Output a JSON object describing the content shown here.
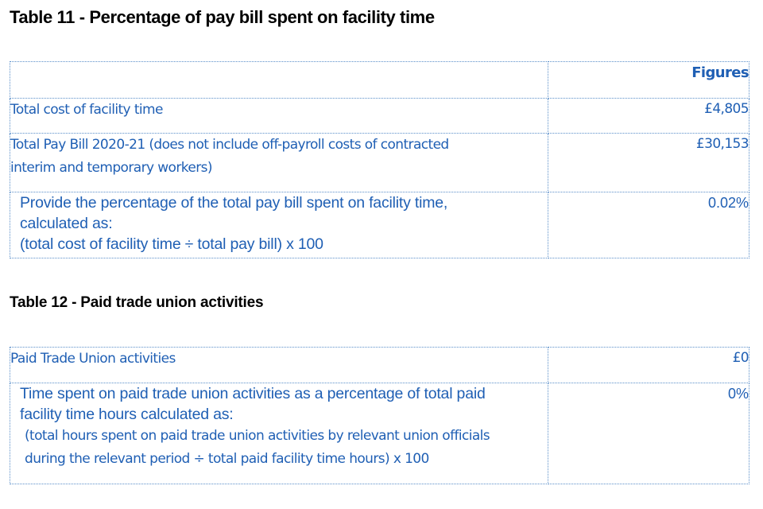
{
  "table11": {
    "title": "Table 11 - Percentage of pay bill spent on facility time",
    "header_value": "Figures",
    "rows": [
      {
        "lines": [
          "Total cost of facility time"
        ],
        "value": "£4,805"
      },
      {
        "lines": [
          "Total Pay Bill 2020-21 (does not include off-payroll costs of contracted",
          "interim and temporary workers)"
        ],
        "value": "£30,153"
      },
      {
        "lines": [
          "Provide the percentage of the total pay bill spent on facility time,",
          "calculated as:",
          "(total cost of facility time ÷ total pay bill) x 100"
        ],
        "value": "0.02%"
      }
    ]
  },
  "table12": {
    "title": "Table 12 - Paid trade union activities",
    "rows": [
      {
        "lines": [
          "Paid Trade Union activities"
        ],
        "value": "£0"
      },
      {
        "lines": [
          "Time spent on paid trade union activities as a percentage of total paid",
          "facility time hours calculated as:",
          "(total hours spent on paid trade union activities by relevant union officials",
          "during the relevant period ÷ total paid facility time hours) x 100"
        ],
        "value": "0%"
      }
    ]
  }
}
